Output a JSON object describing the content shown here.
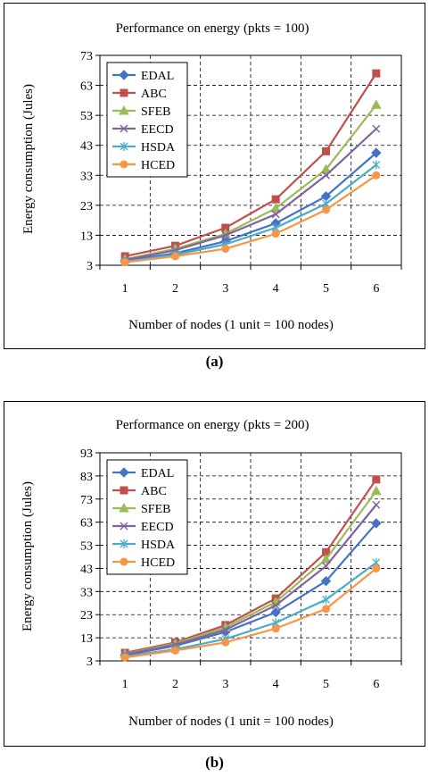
{
  "chart_data": [
    {
      "type": "line",
      "title": "Performance on energy (pkts = 100)",
      "xlabel": "Number of nodes (1 unit = 100 nodes)",
      "ylabel": "Energy consumption (Jules)",
      "x": [
        1,
        2,
        3,
        4,
        5,
        6
      ],
      "xticks": [
        "1",
        "2",
        "3",
        "4",
        "5",
        "6"
      ],
      "ylim": [
        3,
        73
      ],
      "yticks": [
        3,
        13,
        23,
        33,
        43,
        53,
        63,
        73
      ],
      "grid": true,
      "legend_position": "top-left",
      "caption": "(a)",
      "series": [
        {
          "name": "EDAL",
          "color": "#4472C4",
          "marker": "diamond",
          "values": [
            4.5,
            7.0,
            11.0,
            17.0,
            26.0,
            40.5
          ]
        },
        {
          "name": "ABC",
          "color": "#C0504D",
          "marker": "square",
          "values": [
            6.0,
            9.5,
            15.5,
            25.0,
            41.0,
            67.0
          ]
        },
        {
          "name": "SFEB",
          "color": "#9BBB59",
          "marker": "triangle",
          "values": [
            5.0,
            8.5,
            13.5,
            22.0,
            35.0,
            56.5
          ]
        },
        {
          "name": "EECD",
          "color": "#8064A2",
          "marker": "x",
          "values": [
            4.8,
            8.0,
            13.0,
            20.0,
            33.0,
            48.5
          ]
        },
        {
          "name": "HSDA",
          "color": "#4BACC6",
          "marker": "star",
          "values": [
            4.2,
            6.5,
            10.0,
            15.5,
            23.5,
            36.5
          ]
        },
        {
          "name": "HCED",
          "color": "#F79646",
          "marker": "circle",
          "values": [
            4.0,
            6.0,
            8.5,
            13.5,
            21.5,
            33.0
          ]
        }
      ]
    },
    {
      "type": "line",
      "title": "Performance on energy (pkts = 200)",
      "xlabel": "Number of nodes (1 unit = 100 nodes)",
      "ylabel": "Energy consumption (Jules)",
      "x": [
        1,
        2,
        3,
        4,
        5,
        6
      ],
      "xticks": [
        "1",
        "2",
        "3",
        "4",
        "5",
        "6"
      ],
      "ylim": [
        3,
        93
      ],
      "yticks": [
        3,
        13,
        23,
        33,
        43,
        53,
        63,
        73,
        83,
        93
      ],
      "grid": true,
      "legend_position": "top-left",
      "caption": "(b)",
      "series": [
        {
          "name": "EDAL",
          "color": "#4472C4",
          "marker": "diamond",
          "values": [
            5.5,
            9.5,
            15.5,
            24.0,
            37.5,
            62.5
          ]
        },
        {
          "name": "ABC",
          "color": "#C0504D",
          "marker": "square",
          "values": [
            6.5,
            11.0,
            18.5,
            30.0,
            50.0,
            81.5
          ]
        },
        {
          "name": "SFEB",
          "color": "#9BBB59",
          "marker": "triangle",
          "values": [
            6.0,
            10.5,
            17.5,
            28.5,
            47.0,
            76.5
          ]
        },
        {
          "name": "EECD",
          "color": "#8064A2",
          "marker": "x",
          "values": [
            5.8,
            10.0,
            16.5,
            27.0,
            44.0,
            70.5
          ]
        },
        {
          "name": "HSDA",
          "color": "#4BACC6",
          "marker": "star",
          "values": [
            5.0,
            8.0,
            12.5,
            19.5,
            29.5,
            45.5
          ]
        },
        {
          "name": "HCED",
          "color": "#F79646",
          "marker": "circle",
          "values": [
            4.5,
            7.5,
            11.0,
            17.0,
            25.5,
            43.0
          ]
        }
      ]
    }
  ]
}
